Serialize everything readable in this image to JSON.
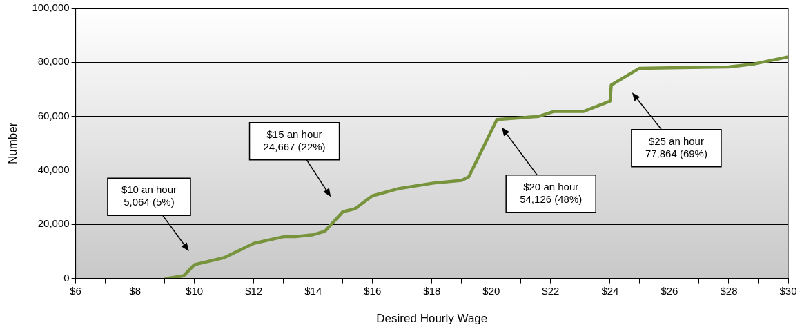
{
  "chart_data": {
    "type": "line",
    "xlabel": "Desired Hourly Wage",
    "ylabel": "Number",
    "x": [
      9.04,
      9.64,
      10.0,
      11.0,
      12.0,
      13.03,
      13.4,
      14.0,
      14.4,
      15.0,
      15.4,
      16.0,
      16.86,
      18.05,
      19.0,
      19.24,
      20.19,
      21.6,
      22.1,
      23.1,
      24.0,
      24.04,
      24.99,
      28.0,
      28.86,
      30.0
    ],
    "series": [
      {
        "color": "#77933c",
        "values": [
          0,
          1000,
          5100,
          7700,
          13000,
          15500,
          15500,
          16200,
          17500,
          24700,
          25800,
          30600,
          33200,
          35300,
          36300,
          37600,
          58800,
          60000,
          61800,
          61800,
          65600,
          71600,
          77800,
          78300,
          79400,
          82000
        ]
      }
    ],
    "xlim": [
      6,
      30
    ],
    "xticks": [
      {
        "value": 6,
        "label": "$6"
      },
      {
        "value": 7,
        "label": null
      },
      {
        "value": 8,
        "label": "$8"
      },
      {
        "value": 9,
        "label": null
      },
      {
        "value": 10,
        "label": "$10"
      },
      {
        "value": 11,
        "label": null
      },
      {
        "value": 12,
        "label": "$12"
      },
      {
        "value": 13,
        "label": null
      },
      {
        "value": 14,
        "label": "$14"
      },
      {
        "value": 15,
        "label": null
      },
      {
        "value": 16,
        "label": "$16"
      },
      {
        "value": 17,
        "label": null
      },
      {
        "value": 18,
        "label": "$18"
      },
      {
        "value": 19,
        "label": null
      },
      {
        "value": 20,
        "label": "$20"
      },
      {
        "value": 21,
        "label": null
      },
      {
        "value": 22,
        "label": "$22"
      },
      {
        "value": 23,
        "label": null
      },
      {
        "value": 24,
        "label": "$24"
      },
      {
        "value": 25,
        "label": null
      },
      {
        "value": 26,
        "label": "$26"
      },
      {
        "value": 27,
        "label": null
      },
      {
        "value": 28,
        "label": "$28"
      },
      {
        "value": 29,
        "label": null
      },
      {
        "value": 30,
        "label": "$30"
      }
    ],
    "ylim": [
      0,
      100000
    ],
    "yticks": [
      {
        "value": 0,
        "label": "0"
      },
      {
        "value": 20000,
        "label": "20,000"
      },
      {
        "value": 40000,
        "label": "40,000"
      },
      {
        "value": 60000,
        "label": "60,000"
      },
      {
        "value": 80000,
        "label": "80,000"
      },
      {
        "value": 100000,
        "label": "100,000"
      }
    ],
    "grid": "y",
    "legend": false,
    "marker": "none",
    "line_style": "solid",
    "annotations": [
      "$10 an hour\n5,064 (5%)",
      "$15 an hour\n24,667 (22%)",
      "$20 an hour\n54,126 (48%)",
      "$25 an hour\n77,864 (69%)"
    ]
  }
}
